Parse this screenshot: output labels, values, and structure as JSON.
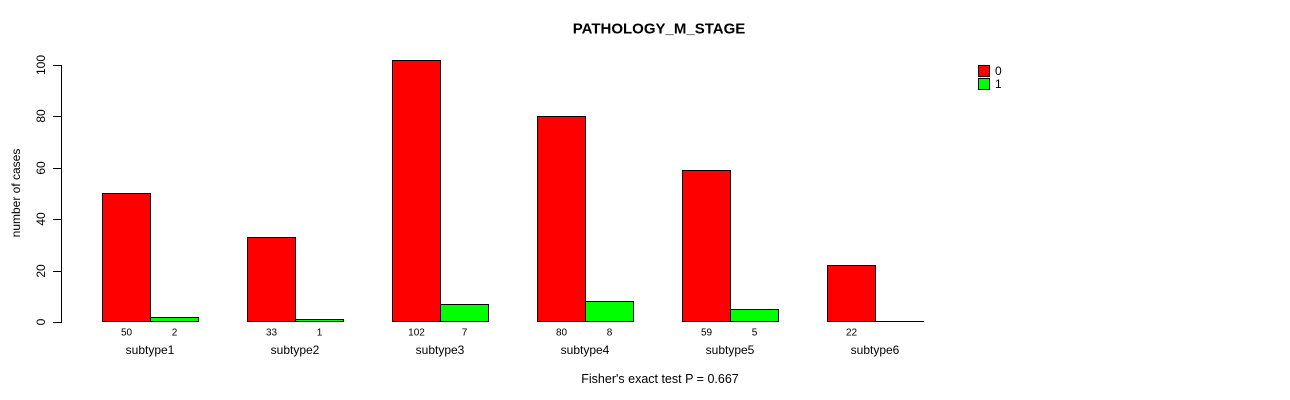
{
  "chart_data": {
    "type": "bar",
    "title": "PATHOLOGY_M_STAGE",
    "xlabel": "",
    "ylabel": "number of cases",
    "annotation": "Fisher's exact test P = 0.667",
    "ylim": [
      0,
      100
    ],
    "yticks": [
      0,
      20,
      40,
      60,
      80,
      100
    ],
    "grid": false,
    "legend_position": "top-right",
    "categories": [
      "subtype1",
      "subtype2",
      "subtype3",
      "subtype4",
      "subtype5",
      "subtype6"
    ],
    "series": [
      {
        "name": "0",
        "color": "#FF0000",
        "values": [
          50,
          33,
          102,
          80,
          59,
          22
        ]
      },
      {
        "name": "1",
        "color": "#00FF00",
        "values": [
          2,
          1,
          7,
          8,
          5,
          0
        ]
      }
    ],
    "bar_value_labels": [
      [
        "50",
        "2"
      ],
      [
        "33",
        "1"
      ],
      [
        "102",
        "7"
      ],
      [
        "80",
        "8"
      ],
      [
        "59",
        "5"
      ],
      [
        "22",
        ""
      ]
    ],
    "colors": {
      "bar_border": "#000000",
      "axis": "#000000",
      "text": "#000000",
      "background": "#FFFFFF"
    }
  }
}
